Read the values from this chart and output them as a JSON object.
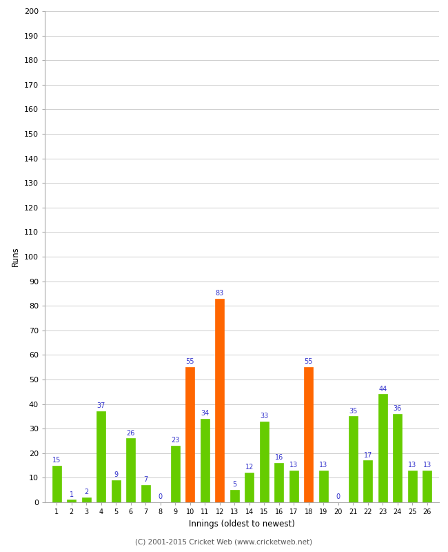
{
  "innings": [
    1,
    2,
    3,
    4,
    5,
    6,
    7,
    8,
    9,
    10,
    11,
    12,
    13,
    14,
    15,
    16,
    17,
    18,
    19,
    20,
    21,
    22,
    23,
    24,
    25,
    26
  ],
  "values": [
    15,
    1,
    2,
    37,
    9,
    26,
    7,
    0,
    23,
    55,
    34,
    83,
    5,
    12,
    33,
    16,
    13,
    55,
    13,
    0,
    35,
    17,
    44,
    36,
    13,
    13
  ],
  "colors": [
    "#66cc00",
    "#66cc00",
    "#66cc00",
    "#66cc00",
    "#66cc00",
    "#66cc00",
    "#66cc00",
    "#66cc00",
    "#66cc00",
    "#ff6600",
    "#66cc00",
    "#ff6600",
    "#66cc00",
    "#66cc00",
    "#66cc00",
    "#66cc00",
    "#66cc00",
    "#ff6600",
    "#66cc00",
    "#66cc00",
    "#66cc00",
    "#66cc00",
    "#66cc00",
    "#66cc00",
    "#66cc00",
    "#66cc00"
  ],
  "xlabel": "Innings (oldest to newest)",
  "ylabel": "Runs",
  "ylim": [
    0,
    200
  ],
  "yticks": [
    0,
    10,
    20,
    30,
    40,
    50,
    60,
    70,
    80,
    90,
    100,
    110,
    120,
    130,
    140,
    150,
    160,
    170,
    180,
    190,
    200
  ],
  "label_color": "#3333cc",
  "bg_color": "#ffffff",
  "grid_color": "#cccccc",
  "footer": "(C) 2001-2015 Cricket Web (www.cricketweb.net)",
  "bar_width": 0.6
}
